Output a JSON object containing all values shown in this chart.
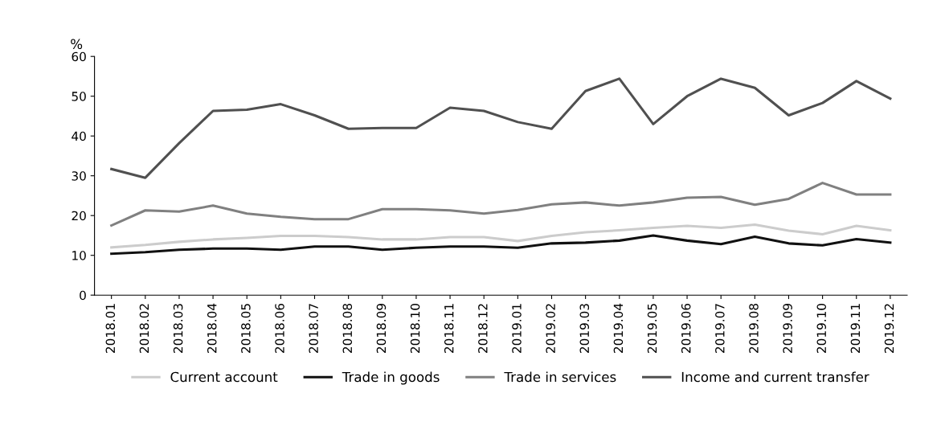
{
  "chart_data": {
    "type": "line",
    "ylabel": "%",
    "categories": [
      "2018.01",
      "2018.02",
      "2018.03",
      "2018.04",
      "2018.05",
      "2018.06",
      "2018.07",
      "2018.08",
      "2018.09",
      "2018.10",
      "2018.11",
      "2018.12",
      "2019.01",
      "2019.02",
      "2019.03",
      "2019.04",
      "2019.05",
      "2019.06",
      "2019.07",
      "2019.08",
      "2019.09",
      "2019.10",
      "2019.11",
      "2019.12"
    ],
    "series": [
      {
        "name": "Current account",
        "color": "#cccccc",
        "values": [
          12.0,
          12.6,
          13.4,
          14.0,
          14.4,
          14.9,
          14.9,
          14.6,
          14.0,
          14.0,
          14.6,
          14.6,
          13.6,
          14.9,
          15.8,
          16.3,
          16.9,
          17.4,
          16.9,
          17.7,
          16.2,
          15.3,
          17.4,
          16.3
        ]
      },
      {
        "name": "Trade in goods",
        "color": "#111111",
        "values": [
          10.4,
          10.8,
          11.4,
          11.7,
          11.7,
          11.4,
          12.2,
          12.2,
          11.4,
          11.9,
          12.2,
          12.2,
          11.9,
          13.0,
          13.2,
          13.7,
          15.0,
          13.7,
          12.8,
          14.7,
          13.0,
          12.5,
          14.1,
          13.2
        ]
      },
      {
        "name": "Trade in services",
        "color": "#808080",
        "values": [
          17.5,
          21.3,
          21.0,
          22.5,
          20.5,
          19.7,
          19.1,
          19.1,
          21.6,
          21.6,
          21.3,
          20.5,
          21.4,
          22.8,
          23.3,
          22.5,
          23.3,
          24.5,
          24.7,
          22.7,
          24.2,
          28.2,
          25.3,
          25.3
        ]
      },
      {
        "name": "Income and current transfer",
        "color": "#505050",
        "values": [
          31.7,
          29.5,
          38.2,
          46.3,
          46.6,
          48.0,
          45.2,
          41.8,
          42.0,
          42.0,
          47.1,
          46.3,
          43.5,
          41.8,
          51.3,
          54.4,
          43.0,
          50.0,
          54.4,
          52.1,
          45.2,
          48.3,
          53.8,
          49.4
        ]
      }
    ],
    "ylim": [
      0,
      60
    ],
    "yticks": [
      0,
      10,
      20,
      30,
      40,
      50,
      60
    ],
    "grid": false,
    "legend": "bottom",
    "line_style": "solid",
    "marker": "none"
  }
}
